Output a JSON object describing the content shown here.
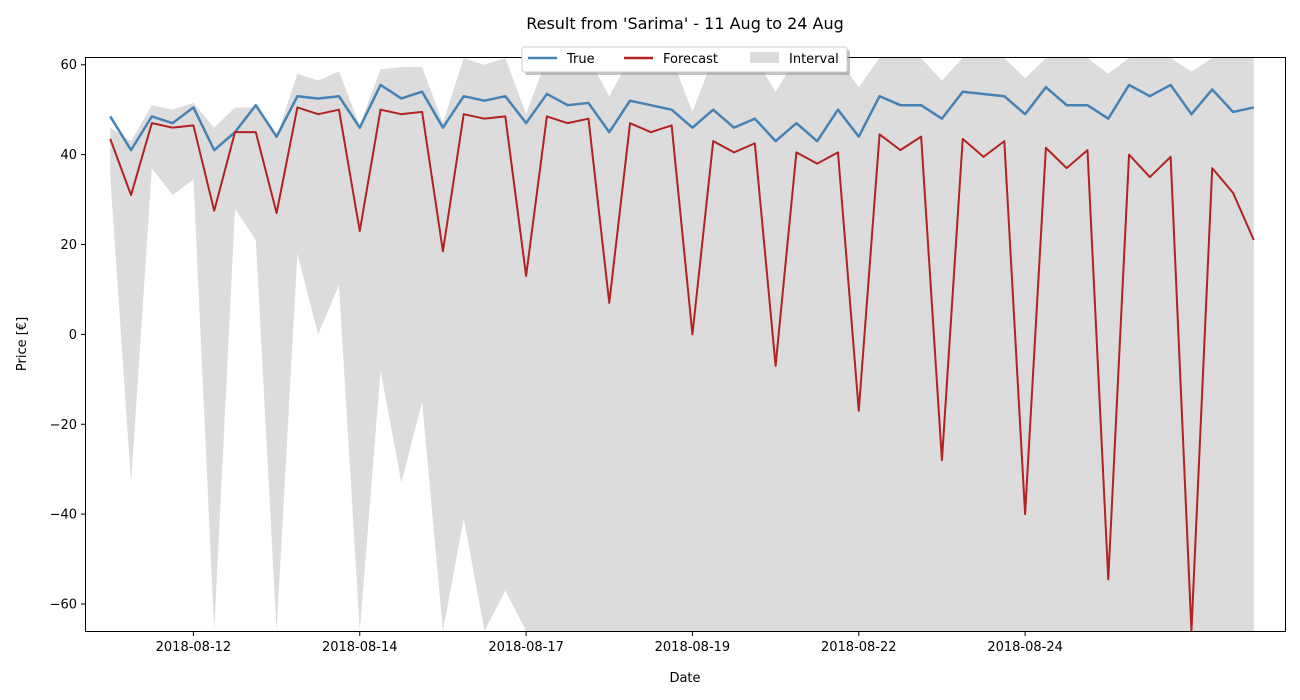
{
  "chart_data": {
    "type": "line",
    "title": "Result from 'Sarima' - 11 Aug to 24 Aug",
    "xlabel": "Date",
    "ylabel": "Price [€]",
    "xlim": [
      "2018-08-10T17:00",
      "2018-08-25T03:00"
    ],
    "ylim": [
      -66,
      61.5
    ],
    "x_ticks": [
      "2018-08-12",
      "2018-08-14",
      "2018-08-17",
      "2018-08-19",
      "2018-08-22",
      "2018-08-24"
    ],
    "y_ticks": [
      60,
      40,
      20,
      0,
      -20,
      -40,
      -60
    ],
    "y_tick_labels": [
      "60",
      "40",
      "20",
      "0",
      "−20",
      "−40",
      "−60"
    ],
    "x_scale_note": "category-like date ticks with irregular spacing",
    "legend": {
      "position": "top-center",
      "entries": [
        "True",
        "Forecast",
        "Interval"
      ]
    },
    "grid": false,
    "colors": {
      "true": "#4682b4",
      "forecast": "#b22222",
      "interval": "#dcdcdc"
    },
    "series": [
      {
        "name": "True",
        "x": [
          "2018-08-11T00",
          "2018-08-11T06",
          "2018-08-11T12",
          "2018-08-11T18",
          "2018-08-12T00",
          "2018-08-12T06",
          "2018-08-12T12",
          "2018-08-12T18",
          "2018-08-13T00",
          "2018-08-13T06",
          "2018-08-13T12",
          "2018-08-13T18",
          "2018-08-14T00",
          "2018-08-14T06",
          "2018-08-14T12",
          "2018-08-14T18",
          "2018-08-15T00",
          "2018-08-15T06",
          "2018-08-15T12",
          "2018-08-15T18",
          "2018-08-16T00",
          "2018-08-16T06",
          "2018-08-16T12",
          "2018-08-16T18",
          "2018-08-17T00",
          "2018-08-17T06",
          "2018-08-17T12",
          "2018-08-17T18",
          "2018-08-18T00",
          "2018-08-18T06",
          "2018-08-18T12",
          "2018-08-18T18",
          "2018-08-19T00",
          "2018-08-19T06",
          "2018-08-19T12",
          "2018-08-19T18",
          "2018-08-20T00",
          "2018-08-20T06",
          "2018-08-20T12",
          "2018-08-20T18",
          "2018-08-21T00",
          "2018-08-21T06",
          "2018-08-21T12",
          "2018-08-21T18",
          "2018-08-22T00",
          "2018-08-22T06",
          "2018-08-22T12",
          "2018-08-22T18",
          "2018-08-23T00",
          "2018-08-23T06",
          "2018-08-23T12",
          "2018-08-23T18",
          "2018-08-24T00",
          "2018-08-24T06",
          "2018-08-24T12",
          "2018-08-24T18"
        ],
        "values": [
          48.5,
          41.0,
          48.5,
          47.0,
          50.5,
          41.0,
          45.0,
          51.0,
          44.0,
          53.0,
          52.5,
          53.0,
          46.0,
          55.5,
          52.5,
          54.0,
          46.0,
          53.0,
          52.0,
          53.0,
          47.0,
          53.5,
          51.0,
          51.5,
          45.0,
          52.0,
          51.0,
          50.0,
          46.0,
          50.0,
          46.0,
          48.0,
          43.0,
          47.0,
          43.0,
          50.0,
          44.0,
          53.0,
          51.0,
          51.0,
          48.0,
          54.0,
          53.5,
          53.0,
          49.0,
          55.0,
          51.0,
          51.0,
          48.0,
          55.5,
          53.0,
          55.5,
          49.0,
          54.5,
          49.5,
          50.5
        ]
      },
      {
        "name": "Forecast",
        "x": [
          "2018-08-11T00",
          "2018-08-11T06",
          "2018-08-11T12",
          "2018-08-11T18",
          "2018-08-12T00",
          "2018-08-12T06",
          "2018-08-12T12",
          "2018-08-12T18",
          "2018-08-13T00",
          "2018-08-13T06",
          "2018-08-13T12",
          "2018-08-13T18",
          "2018-08-14T00",
          "2018-08-14T06",
          "2018-08-14T12",
          "2018-08-14T18",
          "2018-08-15T00",
          "2018-08-15T06",
          "2018-08-15T12",
          "2018-08-15T18",
          "2018-08-16T00",
          "2018-08-16T06",
          "2018-08-16T12",
          "2018-08-16T18",
          "2018-08-17T00",
          "2018-08-17T06",
          "2018-08-17T12",
          "2018-08-17T18",
          "2018-08-18T00",
          "2018-08-18T06",
          "2018-08-18T12",
          "2018-08-18T18",
          "2018-08-19T00",
          "2018-08-19T06",
          "2018-08-19T12",
          "2018-08-19T18",
          "2018-08-20T00",
          "2018-08-20T06",
          "2018-08-20T12",
          "2018-08-20T18",
          "2018-08-21T00",
          "2018-08-21T06",
          "2018-08-21T12",
          "2018-08-21T18",
          "2018-08-22T00",
          "2018-08-22T06",
          "2018-08-22T12",
          "2018-08-22T18",
          "2018-08-23T00",
          "2018-08-23T06",
          "2018-08-23T12",
          "2018-08-23T18",
          "2018-08-24T00",
          "2018-08-24T06",
          "2018-08-24T12",
          "2018-08-24T18"
        ],
        "values": [
          43.5,
          31.0,
          47.0,
          46.0,
          46.5,
          27.5,
          45.0,
          45.0,
          27.0,
          50.5,
          49.0,
          50.0,
          23.0,
          50.0,
          49.0,
          49.5,
          18.5,
          49.0,
          48.0,
          48.5,
          13.0,
          48.5,
          47.0,
          48.0,
          7.0,
          47.0,
          45.0,
          46.5,
          0.0,
          43.0,
          40.5,
          42.5,
          -7.0,
          40.5,
          38.0,
          40.5,
          -17.0,
          44.5,
          41.0,
          44.0,
          -28.0,
          43.5,
          39.5,
          43.0,
          -40.0,
          41.5,
          37.0,
          41.0,
          -54.5,
          40.0,
          35.0,
          39.5,
          -66.0,
          37.0,
          31.5,
          21.0
        ]
      },
      {
        "name": "Interval",
        "x": [
          "2018-08-11T00",
          "2018-08-11T06",
          "2018-08-11T12",
          "2018-08-11T18",
          "2018-08-12T00",
          "2018-08-12T06",
          "2018-08-12T12",
          "2018-08-12T18",
          "2018-08-13T00",
          "2018-08-13T06",
          "2018-08-13T12",
          "2018-08-13T18",
          "2018-08-14T00",
          "2018-08-14T06",
          "2018-08-14T12",
          "2018-08-14T18",
          "2018-08-15T00",
          "2018-08-15T06",
          "2018-08-15T12",
          "2018-08-15T18",
          "2018-08-16T00",
          "2018-08-16T06",
          "2018-08-16T12",
          "2018-08-16T18",
          "2018-08-17T00",
          "2018-08-17T06",
          "2018-08-17T12",
          "2018-08-17T18",
          "2018-08-18T00",
          "2018-08-18T06",
          "2018-08-18T12",
          "2018-08-18T18",
          "2018-08-19T00",
          "2018-08-19T06",
          "2018-08-19T12",
          "2018-08-19T18",
          "2018-08-20T00",
          "2018-08-20T06",
          "2018-08-20T12",
          "2018-08-20T18",
          "2018-08-21T00",
          "2018-08-21T06",
          "2018-08-21T12",
          "2018-08-21T18",
          "2018-08-22T00",
          "2018-08-22T06",
          "2018-08-22T12",
          "2018-08-22T18",
          "2018-08-23T00",
          "2018-08-23T06",
          "2018-08-23T12",
          "2018-08-23T18",
          "2018-08-24T00",
          "2018-08-24T06",
          "2018-08-24T12",
          "2018-08-24T18"
        ],
        "upper": [
          46.0,
          43.0,
          51.0,
          50.0,
          51.5,
          46.0,
          50.5,
          50.5,
          44.0,
          58.0,
          56.5,
          58.5,
          46.5,
          59.0,
          59.5,
          59.5,
          47.0,
          61.5,
          60.0,
          61.5,
          49.0,
          61.5,
          60.5,
          61.5,
          53.0,
          61.5,
          61.5,
          61.5,
          49.5,
          61.5,
          61.5,
          61.5,
          54.0,
          61.5,
          61.5,
          61.5,
          55.0,
          61.5,
          61.5,
          61.5,
          56.5,
          61.5,
          61.5,
          61.5,
          57.0,
          61.5,
          61.5,
          61.5,
          58.0,
          61.5,
          61.5,
          61.5,
          58.5,
          61.5,
          61.5,
          61.5
        ],
        "lower": [
          35.0,
          -33.0,
          37.0,
          31.0,
          34.5,
          -66.0,
          28.0,
          21.0,
          -66.0,
          18.0,
          0.0,
          11.0,
          -66.0,
          -8.0,
          -33.0,
          -15.0,
          -66.0,
          -41.0,
          -66.0,
          -57.0,
          -66.0,
          -66.0,
          -66.0,
          -66.0,
          -66.0,
          -66.0,
          -66.0,
          -66.0,
          -66.0,
          -66.0,
          -66.0,
          -66.0,
          -66.0,
          -66.0,
          -66.0,
          -66.0,
          -66.0,
          -66.0,
          -66.0,
          -66.0,
          -66.0,
          -66.0,
          -66.0,
          -66.0,
          -66.0,
          -66.0,
          -66.0,
          -66.0,
          -66.0,
          -66.0,
          -66.0,
          -66.0,
          -66.0,
          -66.0,
          -66.0,
          -66.0
        ]
      }
    ]
  }
}
